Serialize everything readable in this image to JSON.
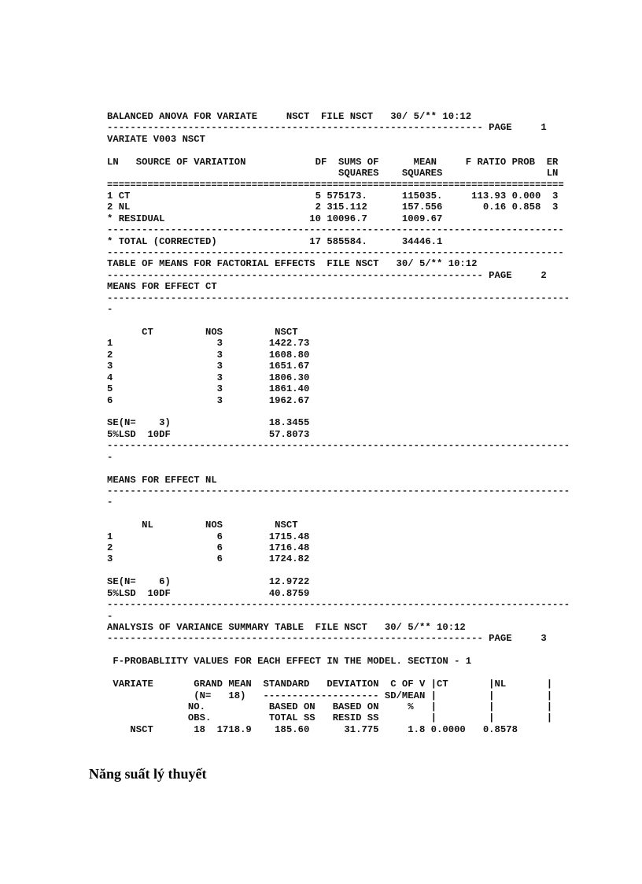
{
  "report": {
    "lines": [
      "BALANCED ANOVA FOR VARIATE     NSCT  FILE NSCT   30/ 5/** 10:12",
      "----------------------------------------------------------------- PAGE     1",
      "VARIATE V003 NSCT",
      "",
      "LN   SOURCE OF VARIATION            DF  SUMS OF      MEAN     F RATIO PROB  ER",
      "                                        SQUARES    SQUARES                  LN",
      "===============================================================================",
      "1 CT                                5 575173.      115035.     113.93 0.000  3",
      "2 NL                                2 315.112      157.556       0.16 0.858  3",
      "* RESIDUAL                         10 10096.7      1009.67",
      "-------------------------------------------------------------------------------",
      "* TOTAL (CORRECTED)                17 585584.      34446.1",
      "-------------------------------------------------------------------------------",
      "TABLE OF MEANS FOR FACTORIAL EFFECTS  FILE NSCT   30/ 5/** 10:12",
      "----------------------------------------------------------------- PAGE     2",
      "MEANS FOR EFFECT CT",
      "--------------------------------------------------------------------------------",
      "-",
      "",
      "      CT         NOS         NSCT",
      "1                  3        1422.73",
      "2                  3        1608.80",
      "3                  3        1651.67",
      "4                  3        1806.30",
      "5                  3        1861.40",
      "6                  3        1962.67",
      "",
      "SE(N=    3)                 18.3455",
      "5%LSD  10DF                 57.8073",
      "--------------------------------------------------------------------------------",
      "-",
      "",
      "MEANS FOR EFFECT NL",
      "--------------------------------------------------------------------------------",
      "-",
      "",
      "      NL         NOS         NSCT",
      "1                  6        1715.48",
      "2                  6        1716.48",
      "3                  6        1724.82",
      "",
      "SE(N=    6)                 12.9722",
      "5%LSD  10DF                 40.8759",
      "--------------------------------------------------------------------------------",
      "-",
      "ANALYSIS OF VARIANCE SUMMARY TABLE  FILE NSCT   30/ 5/** 10:12",
      "----------------------------------------------------------------- PAGE     3",
      "",
      " F-PROBABLIITY VALUES FOR EACH EFFECT IN THE MODEL. SECTION - 1",
      "",
      " VARIATE       GRAND MEAN  STANDARD   DEVIATION  C OF V |CT       |NL       |",
      "               (N=   18)   -------------------- SD/MEAN |         |         |",
      "              NO.           BASED ON   BASED ON     %   |         |         |",
      "              OBS.          TOTAL SS   RESID SS         |         |         |",
      "    NSCT       18  1718.9    185.60      31.775     1.8 0.0000   0.8578"
    ]
  },
  "heading": "Năng suất lý thuyết"
}
